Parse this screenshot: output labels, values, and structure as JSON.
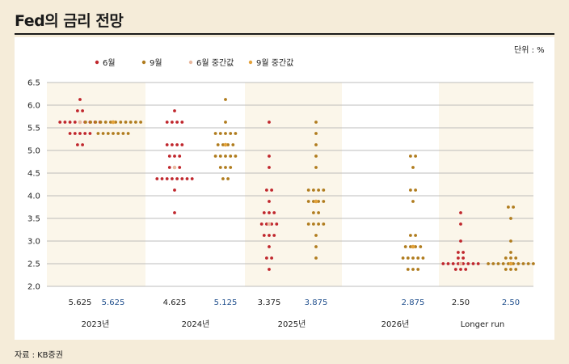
{
  "title": "Fed의 금리 전망",
  "unit": "단위 : %",
  "source": "자료 : KB증권",
  "colors": {
    "june": "#c0272d",
    "sept": "#b07c1e",
    "june_median": "#e8b9a0",
    "sept_median": "#e3a23a",
    "band": "#fbf6ea",
    "grid": "#a9a9a9",
    "median_blue": "#1f4e8c",
    "median_black": "#222222"
  },
  "chart_data": {
    "type": "scatter",
    "ylim": [
      2.0,
      6.5
    ],
    "yticks": [
      "2.0",
      "2.5",
      "3.0",
      "3.5",
      "4.0",
      "4.5",
      "5.0",
      "5.5",
      "6.0",
      "6.5"
    ],
    "grid": true,
    "legend": {
      "placement": "top-left",
      "items": [
        {
          "label": "6월",
          "color": "#c0272d"
        },
        {
          "label": "9월",
          "color": "#b07c1e"
        },
        {
          "label": "6월 중간값",
          "color": "#e8b9a0"
        },
        {
          "label": "9월 중간값",
          "color": "#e3a23a"
        }
      ]
    },
    "groups": [
      {
        "label": "2023년",
        "june": {
          "median": 5.625,
          "median_label": "5.625",
          "dots": [
            [
              6.125,
              1
            ],
            [
              5.875,
              2
            ],
            [
              5.625,
              9
            ],
            [
              5.375,
              5
            ],
            [
              5.125,
              2
            ]
          ]
        },
        "sept": {
          "median": 5.625,
          "median_label": "5.625",
          "dots": [
            [
              5.625,
              12
            ],
            [
              5.375,
              7
            ]
          ]
        }
      },
      {
        "label": "2024년",
        "june": {
          "median": 4.625,
          "median_label": "4.625",
          "dots": [
            [
              5.875,
              1
            ],
            [
              5.625,
              4
            ],
            [
              5.125,
              4
            ],
            [
              4.875,
              3
            ],
            [
              4.625,
              3
            ],
            [
              4.375,
              8
            ],
            [
              4.125,
              1
            ],
            [
              3.625,
              1
            ]
          ]
        },
        "sept": {
          "median": 5.125,
          "median_label": "5.125",
          "dots": [
            [
              6.125,
              1
            ],
            [
              5.625,
              1
            ],
            [
              5.375,
              5
            ],
            [
              5.125,
              4
            ],
            [
              4.875,
              5
            ],
            [
              4.625,
              3
            ],
            [
              4.375,
              2
            ]
          ]
        }
      },
      {
        "label": "2025년",
        "june": {
          "median": 3.375,
          "median_label": "3.375",
          "dots": [
            [
              5.625,
              1
            ],
            [
              4.875,
              1
            ],
            [
              4.625,
              1
            ],
            [
              4.125,
              2
            ],
            [
              3.875,
              1
            ],
            [
              3.625,
              3
            ],
            [
              3.375,
              4
            ],
            [
              3.125,
              3
            ],
            [
              2.875,
              1
            ],
            [
              2.625,
              2
            ],
            [
              2.375,
              1
            ]
          ]
        },
        "sept": {
          "median": 3.875,
          "median_label": "3.875",
          "dots": [
            [
              5.625,
              1
            ],
            [
              5.375,
              1
            ],
            [
              5.125,
              1
            ],
            [
              4.875,
              1
            ],
            [
              4.625,
              1
            ],
            [
              4.125,
              4
            ],
            [
              3.875,
              4
            ],
            [
              3.625,
              2
            ],
            [
              3.375,
              4
            ],
            [
              3.125,
              1
            ],
            [
              2.875,
              1
            ],
            [
              2.625,
              1
            ]
          ]
        }
      },
      {
        "label": "2026년",
        "june": null,
        "sept": {
          "median": 2.875,
          "median_label": "2.875",
          "dots": [
            [
              4.875,
              2
            ],
            [
              4.625,
              1
            ],
            [
              4.125,
              2
            ],
            [
              3.875,
              1
            ],
            [
              3.125,
              2
            ],
            [
              2.875,
              4
            ],
            [
              2.625,
              5
            ],
            [
              2.375,
              3
            ]
          ]
        }
      },
      {
        "label": "Longer run",
        "june": {
          "median": 2.5,
          "median_label": "2.50",
          "dots": [
            [
              3.625,
              1
            ],
            [
              3.375,
              1
            ],
            [
              3.0,
              1
            ],
            [
              2.75,
              2
            ],
            [
              2.625,
              2
            ],
            [
              2.5,
              8
            ],
            [
              2.375,
              3
            ]
          ]
        },
        "sept": {
          "median": 2.5,
          "median_label": "2.50",
          "dots": [
            [
              3.75,
              2
            ],
            [
              3.5,
              1
            ],
            [
              3.0,
              1
            ],
            [
              2.75,
              1
            ],
            [
              2.625,
              3
            ],
            [
              2.5,
              10
            ],
            [
              2.375,
              3
            ]
          ]
        }
      }
    ]
  }
}
